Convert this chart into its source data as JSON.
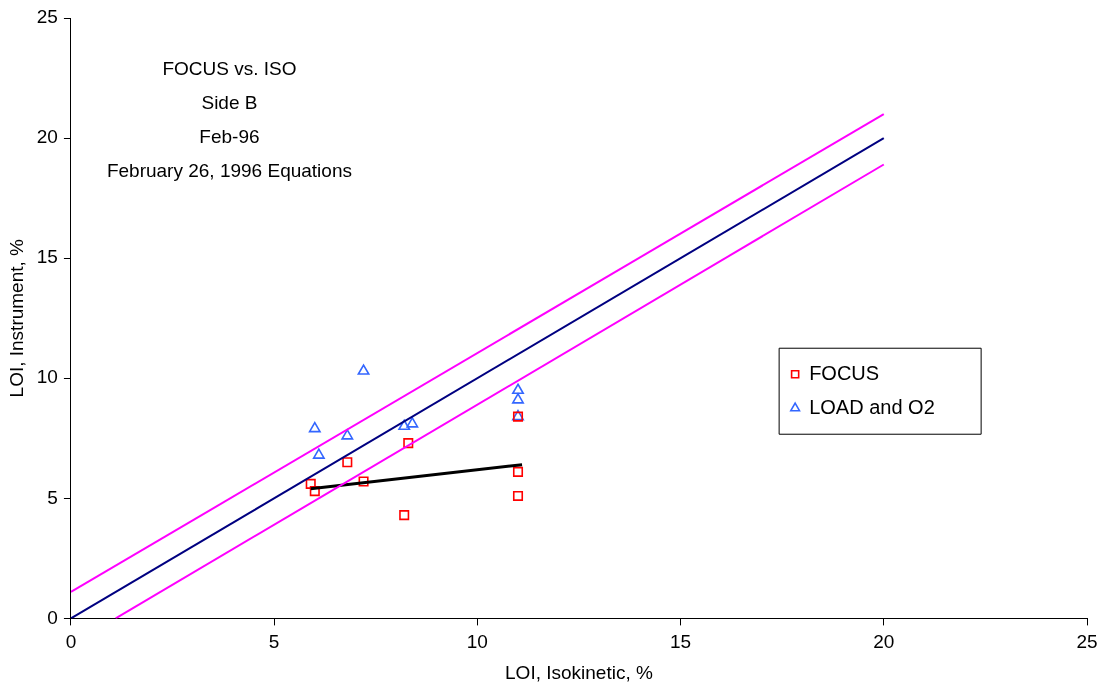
{
  "chart_data": {
    "type": "scatter",
    "xlabel": "LOI, Isokinetic, %",
    "ylabel": "LOI, Instrument, %",
    "annotations": [
      "FOCUS vs. ISO",
      "Side B",
      "Feb-96",
      "February 26, 1996 Equations"
    ],
    "xlim": [
      0,
      25
    ],
    "xticks": [
      0,
      5,
      10,
      15,
      20,
      25
    ],
    "ylim": [
      0,
      25
    ],
    "yticks": [
      0,
      5,
      10,
      15,
      20,
      25
    ],
    "grid": false,
    "legend": "right",
    "series": [
      {
        "type": "line",
        "color": "#000080",
        "marker": "none",
        "x": [
          0,
          20
        ],
        "values": [
          0,
          20
        ]
      },
      {
        "type": "line",
        "color": "#ff00ff",
        "marker": "none",
        "x": [
          0,
          20
        ],
        "values": [
          1.1,
          21.0
        ]
      },
      {
        "type": "line",
        "color": "#ff00ff",
        "marker": "none",
        "x": [
          1.1,
          20
        ],
        "values": [
          0,
          18.9
        ]
      },
      {
        "type": "line",
        "color": "#000000",
        "marker": "none",
        "x": [
          5.9,
          11.1
        ],
        "values": [
          5.4,
          6.4
        ]
      },
      {
        "name": "FOCUS",
        "color": "#ff0000",
        "marker": "square",
        "x": [
          5.9,
          6.0,
          6.8,
          7.2,
          8.3,
          8.2,
          11.0,
          11.0,
          11.0
        ],
        "values": [
          5.6,
          5.3,
          6.5,
          5.7,
          7.3,
          4.3,
          8.4,
          6.1,
          5.1
        ]
      },
      {
        "name": "LOAD and O2",
        "color": "#3366ff",
        "marker": "triangle",
        "x": [
          6.0,
          6.1,
          6.8,
          7.2,
          8.2,
          8.4,
          11.0,
          11.0,
          11.0
        ],
        "values": [
          7.9,
          6.8,
          7.6,
          10.3,
          8.0,
          8.1,
          9.5,
          9.1,
          8.4
        ]
      }
    ]
  }
}
